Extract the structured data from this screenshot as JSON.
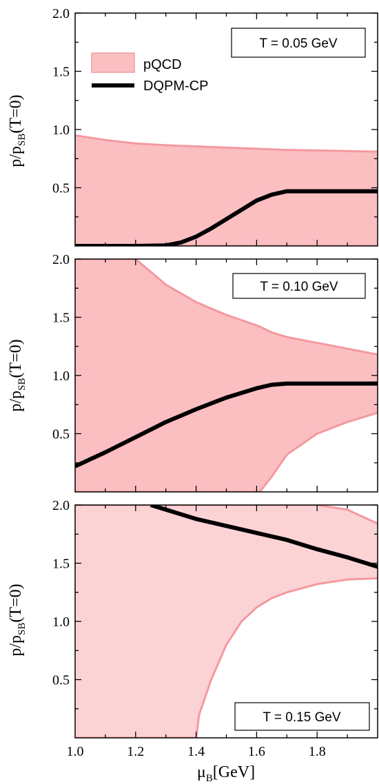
{
  "chart_data": [
    {
      "type": "area",
      "annotation": "T = 0.05 GeV",
      "ylabel": {
        "main": "p/p",
        "sub": "SB",
        "tail": "(T=0)"
      },
      "xlim": [
        1.0,
        2.0
      ],
      "ylim": [
        0.0,
        2.0
      ],
      "yticks": [
        "0.5",
        "1.0",
        "1.5",
        "2.0"
      ],
      "legend": {
        "band": "pQCD",
        "line": "DQPM-CP",
        "position": "top-left"
      },
      "band": {
        "x": [
          1.0,
          1.1,
          1.2,
          1.3,
          1.4,
          1.5,
          1.6,
          1.7,
          1.8,
          1.9,
          2.0
        ],
        "upper": [
          0.95,
          0.91,
          0.88,
          0.865,
          0.855,
          0.845,
          0.835,
          0.825,
          0.82,
          0.815,
          0.81
        ],
        "lower": [
          0,
          0,
          0,
          0,
          0,
          0,
          0,
          0,
          0,
          0,
          0
        ]
      },
      "line": {
        "x": [
          1.0,
          1.1,
          1.2,
          1.3,
          1.35,
          1.4,
          1.45,
          1.5,
          1.55,
          1.6,
          1.65,
          1.7,
          1.8,
          1.9,
          2.0
        ],
        "y": [
          0.0,
          0.0,
          0.0,
          0.005,
          0.03,
          0.08,
          0.15,
          0.23,
          0.31,
          0.39,
          0.44,
          0.47,
          0.47,
          0.47,
          0.47
        ]
      }
    },
    {
      "type": "area",
      "annotation": "T = 0.10 GeV",
      "ylabel": {
        "main": "p/p",
        "sub": "SB",
        "tail": "(T=0)"
      },
      "xlim": [
        1.0,
        2.0
      ],
      "ylim": [
        0.0,
        2.0
      ],
      "yticks": [
        "0.5",
        "1.0",
        "1.5",
        "2.0"
      ],
      "band": {
        "x": [
          1.0,
          1.1,
          1.2,
          1.3,
          1.4,
          1.5,
          1.6,
          1.61,
          1.65,
          1.7,
          1.8,
          1.9,
          2.0
        ],
        "upper": [
          2.0,
          2.0,
          2.0,
          1.78,
          1.63,
          1.52,
          1.43,
          1.42,
          1.37,
          1.33,
          1.28,
          1.23,
          1.18
        ],
        "lower": [
          0,
          0,
          0,
          0,
          0,
          0,
          0,
          0,
          0.13,
          0.32,
          0.5,
          0.6,
          0.68
        ]
      },
      "line": {
        "x": [
          1.0,
          1.1,
          1.2,
          1.3,
          1.4,
          1.5,
          1.6,
          1.65,
          1.7,
          1.8,
          1.9,
          2.0
        ],
        "y": [
          0.22,
          0.34,
          0.47,
          0.6,
          0.71,
          0.81,
          0.89,
          0.92,
          0.93,
          0.93,
          0.93,
          0.93
        ]
      }
    },
    {
      "type": "area",
      "annotation": "T = 0.15 GeV",
      "ylabel": {
        "main": "p/p",
        "sub": "SB",
        "tail": "(T=0)"
      },
      "xlabel": {
        "main": "μ",
        "sub": "B",
        "tail": "[GeV]"
      },
      "xlim": [
        1.0,
        2.0
      ],
      "ylim": [
        0.0,
        2.0
      ],
      "xticks": [
        "1.0",
        "1.2",
        "1.4",
        "1.6",
        "1.8"
      ],
      "yticks": [
        "0.5",
        "1.0",
        "1.5",
        "2.0"
      ],
      "band": {
        "x": [
          1.0,
          1.1,
          1.2,
          1.3,
          1.4,
          1.41,
          1.45,
          1.5,
          1.55,
          1.6,
          1.65,
          1.7,
          1.8,
          1.9,
          2.0
        ],
        "upper": [
          2.0,
          2.0,
          2.0,
          2.0,
          2.0,
          2.0,
          2.0,
          2.0,
          2.0,
          2.0,
          2.0,
          2.0,
          2.0,
          1.96,
          1.84
        ],
        "lower": [
          0,
          0,
          0,
          0,
          0,
          0.2,
          0.5,
          0.8,
          1.0,
          1.12,
          1.2,
          1.25,
          1.32,
          1.36,
          1.37
        ]
      },
      "line": {
        "x": [
          1.25,
          1.3,
          1.4,
          1.5,
          1.6,
          1.7,
          1.8,
          1.9,
          2.0
        ],
        "y": [
          2.0,
          1.96,
          1.88,
          1.82,
          1.76,
          1.7,
          1.62,
          1.55,
          1.47
        ]
      }
    }
  ]
}
